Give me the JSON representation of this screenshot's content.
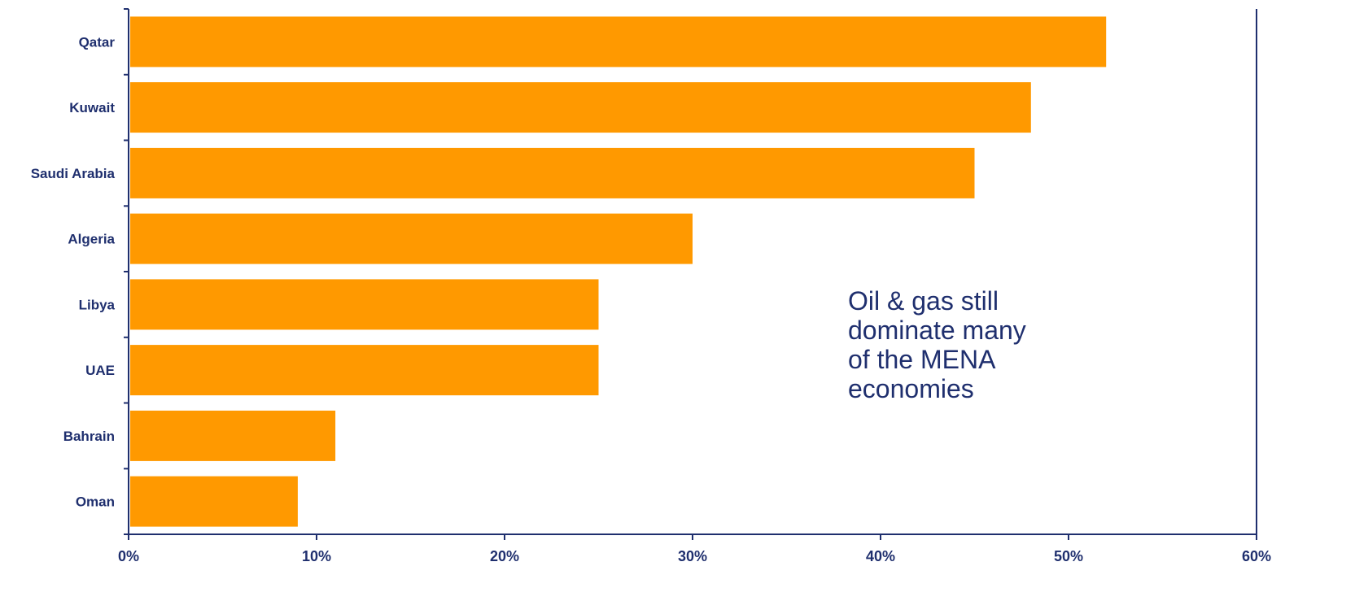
{
  "chart_data": {
    "type": "bar",
    "orientation": "horizontal",
    "categories": [
      "Qatar",
      "Kuwait",
      "Saudi Arabia",
      "Algeria",
      "Libya",
      "UAE",
      "Bahrain",
      "Oman"
    ],
    "values": [
      52,
      48,
      45,
      30,
      25,
      25,
      11,
      9
    ],
    "value_unit": "%",
    "xlim": [
      0,
      60
    ],
    "xticks": [
      0,
      10,
      20,
      30,
      40,
      50,
      60
    ],
    "tick_labels": [
      "0%",
      "10%",
      "20%",
      "30%",
      "40%",
      "50%",
      "60%"
    ],
    "title": "",
    "xlabel": "",
    "ylabel": "",
    "grid": false,
    "legend": "none",
    "annotation": "Oil & gas still dominate many of the MENA economies"
  },
  "colors": {
    "bar": "#FF9900",
    "axis": "#1F2F6E",
    "text": "#1F2F6E"
  }
}
